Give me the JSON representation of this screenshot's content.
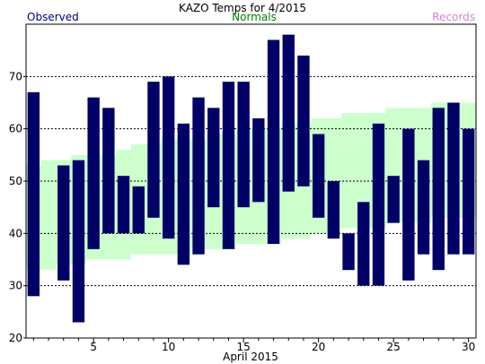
{
  "chart_data": {
    "type": "bar",
    "title": "KAZO Temps for 4/2015",
    "xlabel": "April 2015",
    "ylabel": "",
    "ylim": [
      20,
      80
    ],
    "xlim": [
      0.5,
      30.5
    ],
    "grid": "horizontal-dotted",
    "legend": [
      {
        "name": "Observed",
        "color": "#000080",
        "placement": "top-left"
      },
      {
        "name": "Normals",
        "color": "#008000",
        "placement": "top-center"
      },
      {
        "name": "Records",
        "color": "#cc88cc",
        "placement": "top-right"
      }
    ],
    "yticks": [
      20,
      30,
      40,
      50,
      60,
      70
    ],
    "xticks": [
      5,
      10,
      15,
      20,
      25,
      30
    ],
    "colors": {
      "observed": "#000066",
      "normal_band": "#ccffcc",
      "grid": "#000000"
    },
    "series": [
      {
        "name": "Observed",
        "days": [
          1,
          2,
          3,
          4,
          5,
          6,
          7,
          8,
          9,
          10,
          11,
          12,
          13,
          14,
          15,
          16,
          17,
          18,
          19,
          20,
          21,
          22,
          23,
          24,
          25,
          26,
          27,
          28,
          29,
          30
        ],
        "high": [
          67,
          null,
          53,
          54,
          66,
          64,
          51,
          49,
          69,
          70,
          61,
          66,
          64,
          69,
          69,
          62,
          77,
          78,
          74,
          59,
          50,
          40,
          46,
          61,
          51,
          60,
          54,
          64,
          65,
          60
        ],
        "low": [
          28,
          null,
          31,
          23,
          37,
          40,
          40,
          40,
          43,
          39,
          34,
          36,
          45,
          37,
          45,
          46,
          38,
          48,
          49,
          43,
          39,
          33,
          30,
          30,
          42,
          31,
          36,
          33,
          36,
          36
        ]
      },
      {
        "name": "Normals",
        "days": [
          1,
          2,
          3,
          4,
          5,
          6,
          7,
          8,
          9,
          10,
          11,
          12,
          13,
          14,
          15,
          16,
          17,
          18,
          19,
          20,
          21,
          22,
          23,
          24,
          25,
          26,
          27,
          28,
          29,
          30
        ],
        "high": [
          53,
          54,
          54,
          55,
          55,
          55,
          56,
          57,
          57,
          58,
          58,
          58,
          59,
          59,
          60,
          60,
          60,
          61,
          61,
          62,
          62,
          63,
          63,
          63,
          64,
          64,
          64,
          65,
          65,
          65
        ],
        "low": [
          33,
          33,
          34,
          34,
          35,
          35,
          35,
          36,
          36,
          36,
          36,
          37,
          37,
          37,
          38,
          38,
          38,
          39,
          39,
          40,
          40,
          41,
          41,
          41,
          42,
          42,
          42,
          43,
          43,
          43
        ]
      }
    ]
  }
}
